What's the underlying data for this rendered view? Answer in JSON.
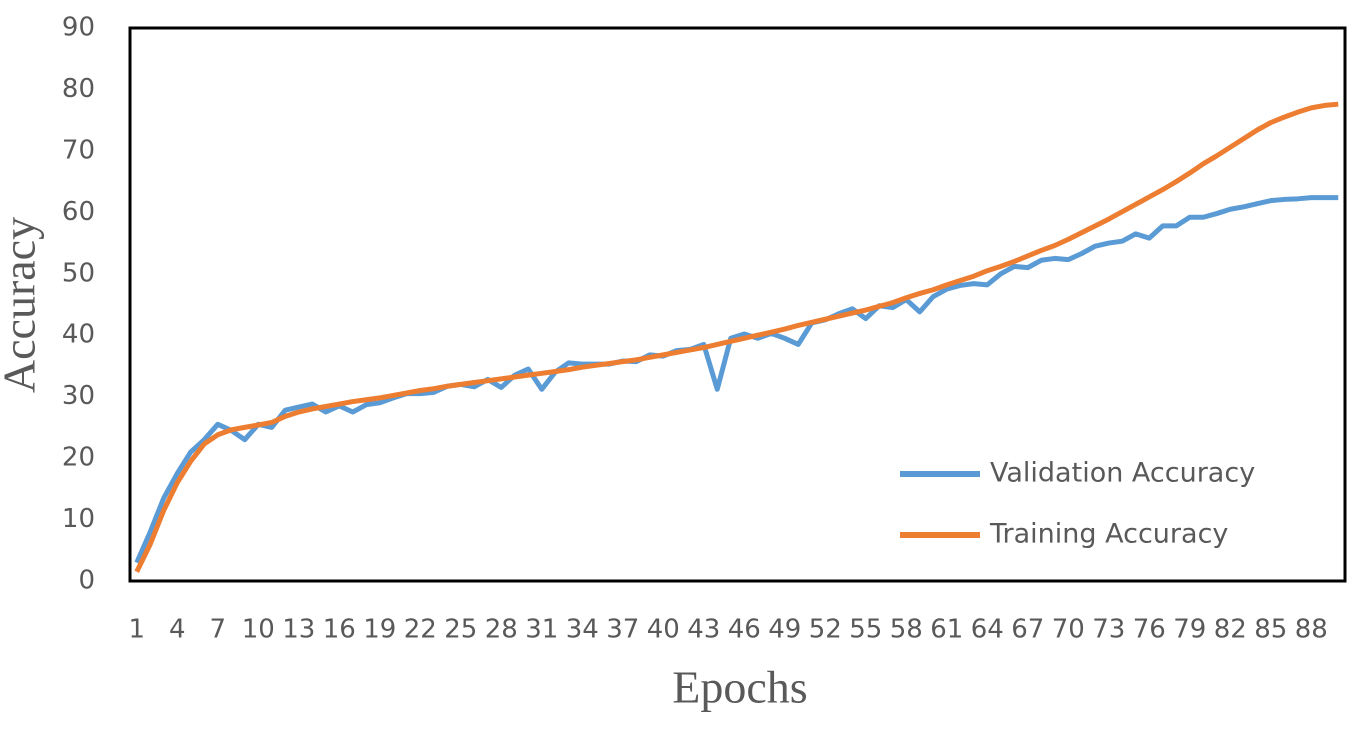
{
  "chart_data": {
    "type": "line",
    "x_label": "Epochs",
    "y_label": "Accuracy",
    "categories": [
      1,
      null,
      null,
      4,
      null,
      null,
      7,
      null,
      null,
      10,
      null,
      null,
      13,
      null,
      null,
      16,
      null,
      null,
      19,
      null,
      null,
      22,
      null,
      null,
      25,
      null,
      null,
      28,
      null,
      null,
      31,
      null,
      null,
      34,
      null,
      null,
      37,
      null,
      null,
      40,
      null,
      null,
      43,
      null,
      null,
      46,
      null,
      null,
      49,
      null,
      null,
      52,
      null,
      null,
      55,
      null,
      null,
      58,
      null,
      null,
      61,
      null,
      null,
      64,
      null,
      null,
      67,
      null,
      null,
      70,
      null,
      null,
      73,
      null,
      null,
      76,
      null,
      null,
      79,
      null,
      null,
      82,
      null,
      null,
      85,
      null,
      null,
      88,
      null,
      null
    ],
    "series": [
      {
        "name": "Validation Accuracy",
        "color": "#5b9bd5",
        "values": [
          3,
          8,
          13.5,
          17.5,
          21,
          23,
          25.5,
          24.5,
          23,
          25.5,
          25,
          27.8,
          28.3,
          28.8,
          27.5,
          28.5,
          27.5,
          28.7,
          29,
          29.8,
          30.5,
          30.5,
          30.7,
          31.7,
          32,
          31.6,
          32.8,
          31.5,
          33.5,
          34.5,
          31.2,
          34,
          35.5,
          35.3,
          35.3,
          35.3,
          35.8,
          35.7,
          36.8,
          36.6,
          37.5,
          37.7,
          38.5,
          31.2,
          39.5,
          40.2,
          39.5,
          40.3,
          39.5,
          38.5,
          42,
          42.5,
          43.5,
          44.3,
          42.7,
          44.8,
          44.5,
          45.8,
          43.8,
          46.3,
          47.5,
          48.1,
          48.4,
          48.2,
          50,
          51.2,
          51,
          52.2,
          52.5,
          52.3,
          53.3,
          54.5,
          55,
          55.3,
          56.5,
          55.8,
          57.8,
          57.8,
          59.2,
          59.2,
          59.8,
          60.5,
          60.9,
          61.4,
          61.9,
          62.1,
          62.2,
          62.4,
          62.4,
          62.4
        ]
      },
      {
        "name": "Training Accuracy",
        "color": "#ed7d31",
        "values": [
          1.5,
          6,
          11.5,
          16,
          19.5,
          22.3,
          23.8,
          24.6,
          25,
          25.4,
          25.8,
          26.8,
          27.5,
          28,
          28.4,
          28.8,
          29.2,
          29.5,
          29.8,
          30.2,
          30.6,
          31,
          31.3,
          31.7,
          32,
          32.3,
          32.6,
          32.9,
          33.2,
          33.5,
          33.8,
          34.1,
          34.4,
          34.8,
          35.1,
          35.4,
          35.7,
          36,
          36.4,
          36.8,
          37.2,
          37.6,
          38,
          38.5,
          39,
          39.5,
          40,
          40.5,
          41,
          41.6,
          42.1,
          42.6,
          43.1,
          43.6,
          44.1,
          44.7,
          45.3,
          46.1,
          46.8,
          47.4,
          48.2,
          48.9,
          49.6,
          50.5,
          51.2,
          52,
          52.9,
          53.8,
          54.6,
          55.6,
          56.7,
          57.8,
          58.9,
          60.1,
          61.3,
          62.5,
          63.7,
          65,
          66.4,
          67.9,
          69.2,
          70.6,
          72,
          73.4,
          74.6,
          75.5,
          76.3,
          77,
          77.4,
          77.6
        ]
      }
    ],
    "ylim": [
      0,
      90
    ],
    "yticks": [
      0,
      10,
      20,
      30,
      40,
      50,
      60,
      70,
      80,
      90
    ],
    "grid": false,
    "legend": "lower right"
  }
}
